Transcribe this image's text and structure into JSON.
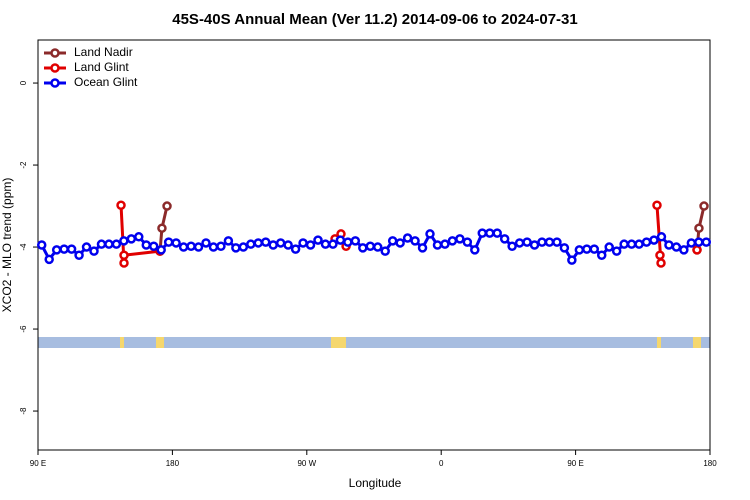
{
  "chart_data": {
    "type": "line",
    "title": "45S-40S Annual Mean (Ver 11.2)   2014-09-06 to 2024-07-31",
    "x_label": "Longitude",
    "y_label": "XCO2 - MLO trend (ppm)",
    "xlim": [
      90,
      540
    ],
    "xticks": [
      {
        "value": 90,
        "label": "90 E"
      },
      180,
      {
        "value": 270,
        "label": "90 W"
      },
      {
        "value": 360,
        "label": "0"
      },
      {
        "value": 450,
        "label": "90 E"
      },
      {
        "value": 540,
        "label": "180"
      }
    ],
    "ylim": [
      -8.95,
      1.05
    ],
    "yticks": [
      0,
      -2,
      -4,
      -6,
      -8
    ],
    "legend": "top-left",
    "series": [
      {
        "name": "Land Nadir",
        "color": "#8b2a2a",
        "x": [
          171.7,
          173,
          176.4,
          null,
          531.3,
          532.6,
          536
        ],
        "values": [
          -4.1,
          -3.54,
          -3.0,
          null,
          -4.07,
          -3.54,
          -3.0
        ]
      },
      {
        "name": "Land Glint",
        "color": "#e00000",
        "x": [
          145.6,
          147.6,
          147.6,
          171.7,
          null,
          288.9,
          292.9,
          296.3,
          null,
          504.5,
          507.2,
          506.5,
          null,
          531.3
        ],
        "values": [
          -2.98,
          -4.39,
          -4.2,
          -4.1,
          null,
          -3.8,
          -3.68,
          -3.98,
          null,
          -2.98,
          -4.39,
          -4.2,
          null,
          -4.07
        ]
      },
      {
        "name": "Ocean Glint",
        "color": "#0000ee",
        "x": [
          92.5,
          97.5,
          102.5,
          107.5,
          112.5,
          117.5,
          122.5,
          127.5,
          132.5,
          137.5,
          142.5,
          147.5,
          152.5,
          157.5,
          162.5,
          167.5,
          172.5,
          177.5,
          182.5,
          187.5,
          192.5,
          197.5,
          202.5,
          207.5,
          212.5,
          217.5,
          222.5,
          227.5,
          232.5,
          237.5,
          242.5,
          247.5,
          252.5,
          257.5,
          262.5,
          267.5,
          272.5,
          277.5,
          282.5,
          287.5,
          292.5,
          297.5,
          302.5,
          307.5,
          312.5,
          317.5,
          322.5,
          327.5,
          332.5,
          337.5,
          342.5,
          347.5,
          352.5,
          357.5,
          362.5,
          367.5,
          372.5,
          377.5,
          382.5,
          387.5,
          392.5,
          397.5,
          402.5,
          407.5,
          412.5,
          417.5,
          422.5,
          427.5,
          432.5,
          437.5,
          442.5,
          447.5,
          452.5,
          457.5,
          462.5,
          467.5,
          472.5,
          477.5,
          482.5,
          487.5,
          492.5,
          497.5,
          502.5,
          507.5,
          512.5,
          517.5,
          522.5,
          527.5,
          532.5,
          537.5
        ],
        "values": [
          -3.95,
          -4.3,
          -4.07,
          -4.05,
          -4.05,
          -4.2,
          -4.0,
          -4.1,
          -3.93,
          -3.93,
          -3.93,
          -3.85,
          -3.8,
          -3.75,
          -3.95,
          -3.98,
          -4.07,
          -3.88,
          -3.9,
          -4.0,
          -3.98,
          -4.0,
          -3.9,
          -4.0,
          -3.98,
          -3.85,
          -4.02,
          -4.0,
          -3.93,
          -3.9,
          -3.88,
          -3.95,
          -3.9,
          -3.95,
          -4.05,
          -3.9,
          -3.95,
          -3.83,
          -3.93,
          -3.93,
          -3.83,
          -3.88,
          -3.85,
          -4.02,
          -3.98,
          -4.0,
          -4.1,
          -3.85,
          -3.9,
          -3.78,
          -3.85,
          -4.02,
          -3.68,
          -3.95,
          -3.93,
          -3.85,
          -3.8,
          -3.88,
          -4.07,
          -3.66,
          -3.66,
          -3.66,
          -3.8,
          -3.98,
          -3.9,
          -3.88,
          -3.95,
          -3.88,
          -3.88,
          -3.88,
          -4.02,
          -4.32,
          -4.07,
          -4.05,
          -4.05,
          -4.2,
          -4.0,
          -4.1,
          -3.93,
          -3.93,
          -3.93,
          -3.88,
          -3.83,
          -3.75,
          -3.95,
          -4.0,
          -4.07,
          -3.9,
          -3.88,
          -3.88
        ]
      }
    ]
  }
}
